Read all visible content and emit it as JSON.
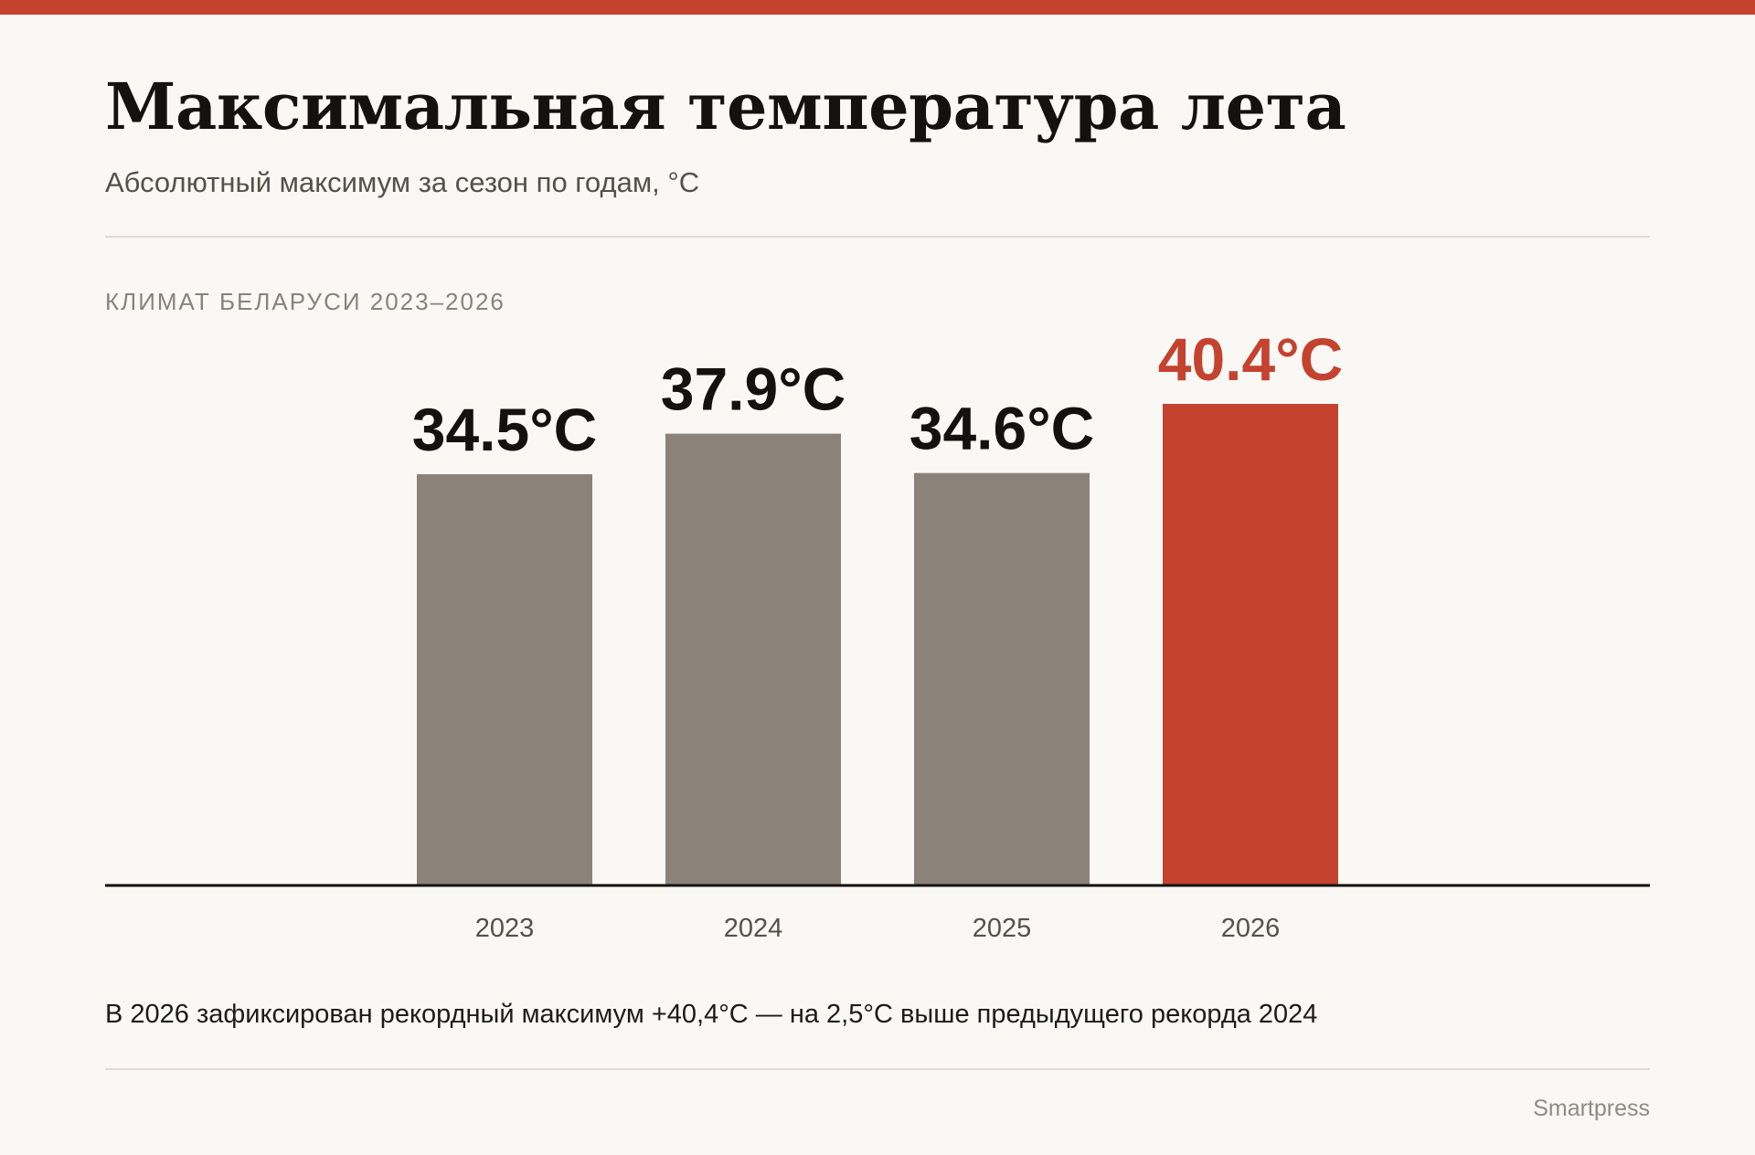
{
  "header": {
    "title": "Максимальная температура лета",
    "subtitle": "Абсолютный максимум за сезон по годам, °C",
    "kicker": "КЛИМАТ БЕЛАРУСИ 2023–2026"
  },
  "footer": {
    "note": "В 2026 зафиксирован рекордный максимум +40,4°C — на 2,5°C выше предыдущего рекорда 2024",
    "credit": "Smartpress"
  },
  "colors": {
    "accent": "#c4432f",
    "bar": "#8b8279",
    "text": "#141210",
    "axis": "#141210",
    "tick": "#555049",
    "background": "#faf8f5"
  },
  "chart_data": {
    "type": "bar",
    "categories": [
      "2023",
      "2024",
      "2025",
      "2026"
    ],
    "values": [
      34.5,
      37.9,
      34.6,
      40.4
    ],
    "value_labels": [
      "34.5°C",
      "37.9°C",
      "34.6°C",
      "40.4°C"
    ],
    "highlight_index": 3,
    "title": "Максимальная температура лета",
    "subtitle": "Абсолютный максимум за сезон по годам, °C",
    "xlabel": "",
    "ylabel": "",
    "ylim": [
      0,
      40.4
    ],
    "grid": false,
    "legend": false,
    "y_axis_visible": false
  }
}
